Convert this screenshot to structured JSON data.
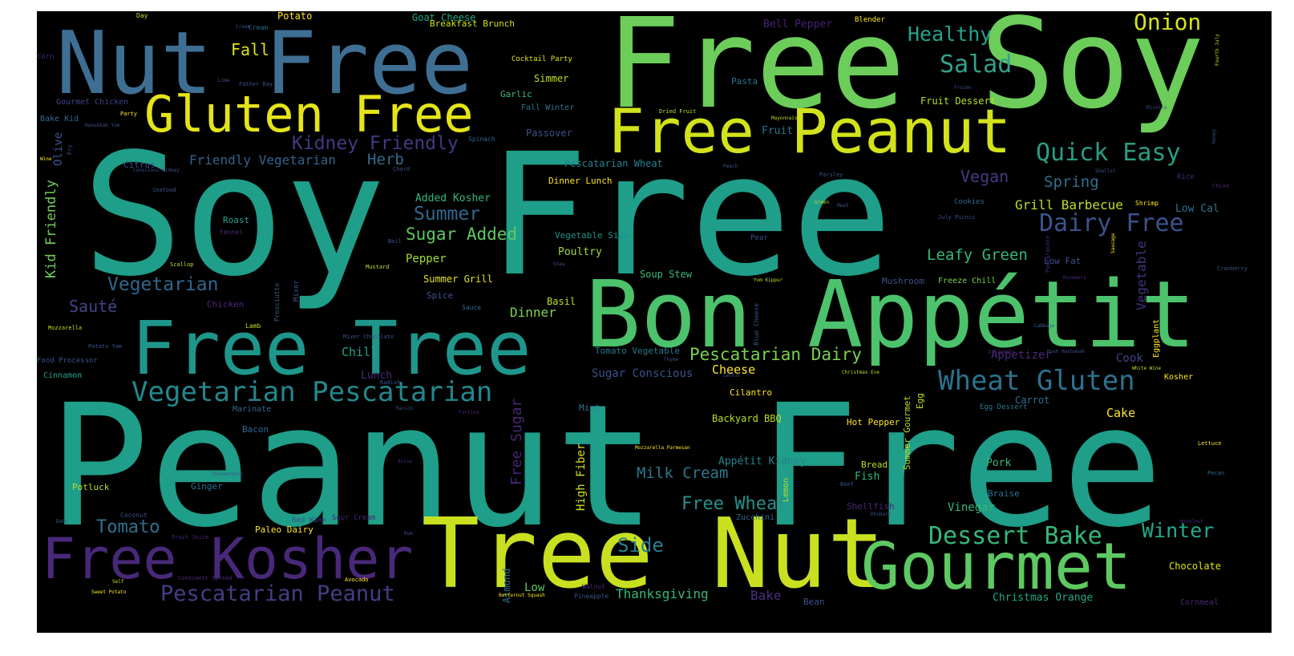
{
  "word_cloud": {
    "words": [
      {
        "text": "Peanut Free",
        "color": "#1f9e89"
      },
      {
        "text": "Soy Free",
        "color": "#1f9e89"
      },
      {
        "text": "Free Soy",
        "color": "#6ccd5a"
      },
      {
        "text": "Tree Nut",
        "color": "#c8e020"
      },
      {
        "text": "Nut Free",
        "color": "#3e6f93"
      },
      {
        "text": "Bon Appétit",
        "color": "#4cc26c"
      },
      {
        "text": "Free Tree",
        "color": "#1f968b"
      },
      {
        "text": "Free Kosher",
        "color": "#482878"
      },
      {
        "text": "Gourmet",
        "color": "#5ec962"
      },
      {
        "text": "Free Peanut",
        "color": "#d2e21b"
      },
      {
        "text": "Gluten Free",
        "color": "#e5e419"
      },
      {
        "text": "Vegetarian Pescatarian",
        "color": "#24878e"
      },
      {
        "text": "Wheat Gluten",
        "color": "#2c728e"
      },
      {
        "text": "Dessert Bake",
        "color": "#35b779"
      },
      {
        "text": "Pescatarian Peanut",
        "color": "#433e85"
      },
      {
        "text": "Quick Easy",
        "color": "#2a9d82"
      },
      {
        "text": "Dairy Free",
        "color": "#3b528b"
      },
      {
        "text": "Kidney Friendly",
        "color": "#453781"
      },
      {
        "text": "Salad",
        "color": "#33a08c"
      },
      {
        "text": "Onion",
        "color": "#d8e219"
      },
      {
        "text": "Healthy",
        "color": "#26a18b"
      },
      {
        "text": "Winter",
        "color": "#26a98b"
      },
      {
        "text": "Pescatarian Dairy",
        "color": "#7ad151"
      },
      {
        "text": "Side",
        "color": "#277f8e"
      },
      {
        "text": "Free Wheat",
        "color": "#26918c"
      },
      {
        "text": "Summer",
        "color": "#31688e"
      },
      {
        "text": "Vegetarian",
        "color": "#31668e"
      },
      {
        "text": "Sugar Added",
        "color": "#5ec962"
      },
      {
        "text": "Tomato",
        "color": "#2c728e"
      },
      {
        "text": "Kid Friendly",
        "color": "#6ece58"
      },
      {
        "text": "Leafy Green",
        "color": "#35b779"
      },
      {
        "text": "Free Sugar",
        "color": "#482475"
      },
      {
        "text": "Milk Cream",
        "color": "#2a788e"
      },
      {
        "text": "Vegan",
        "color": "#443983"
      },
      {
        "text": "Spring",
        "color": "#2d708e"
      },
      {
        "text": "Sauté",
        "color": "#414487"
      },
      {
        "text": "Herb",
        "color": "#2f6c8e"
      },
      {
        "text": "Vegetable",
        "color": "#46327e"
      },
      {
        "text": "Grill Barbecue",
        "color": "#bddf26"
      },
      {
        "text": "Fall",
        "color": "#dde318"
      },
      {
        "text": "Friendly Vegetarian",
        "color": "#32648e"
      },
      {
        "text": "Thanksgiving",
        "color": "#38b977"
      },
      {
        "text": "Sugar Conscious",
        "color": "#3b528b"
      },
      {
        "text": "Potato",
        "color": "#fde725"
      },
      {
        "text": "Dinner",
        "color": "#7fd34e"
      },
      {
        "text": "Pepper",
        "color": "#a5db36"
      },
      {
        "text": "Bake",
        "color": "#46327e"
      },
      {
        "text": "Cake",
        "color": "#fde725"
      },
      {
        "text": "Chill",
        "color": "#20a486"
      },
      {
        "text": "Low Cal",
        "color": "#2c728e"
      },
      {
        "text": "Paleo Dairy",
        "color": "#fde725"
      },
      {
        "text": "Cheese",
        "color": "#fde725"
      },
      {
        "text": "Chocolate",
        "color": "#dde318"
      },
      {
        "text": "Vinegar",
        "color": "#35b779"
      },
      {
        "text": "Appetizer",
        "color": "#482878"
      },
      {
        "text": "Cook",
        "color": "#404688"
      },
      {
        "text": "Christmas Orange",
        "color": "#22a884"
      },
      {
        "text": "Added Kosher",
        "color": "#35b779"
      },
      {
        "text": "High Fiber",
        "color": "#d2e21b"
      },
      {
        "text": "Appétit Kidney",
        "color": "#25858e"
      },
      {
        "text": "Bell Pepper",
        "color": "#482173"
      },
      {
        "text": "Low",
        "color": "#5ec962"
      },
      {
        "text": "Lunch",
        "color": "#482878"
      },
      {
        "text": "Poultry",
        "color": "#a0da39"
      },
      {
        "text": "Pork",
        "color": "#35b779"
      },
      {
        "text": "Soup Stew",
        "color": "#38b977"
      },
      {
        "text": "Backyard BBQ",
        "color": "#b8de29"
      },
      {
        "text": "Summer Grill",
        "color": "#e2e418"
      },
      {
        "text": "Goat Cheese",
        "color": "#22a884"
      },
      {
        "text": "Breakfast Brunch",
        "color": "#d2e21b"
      },
      {
        "text": "Fruit Dessert",
        "color": "#b5de2b"
      },
      {
        "text": "Basil",
        "color": "#bddf26"
      },
      {
        "text": "Roast",
        "color": "#26a18b"
      },
      {
        "text": "Passover",
        "color": "#3b528b"
      },
      {
        "text": "Simmer",
        "color": "#bddf26"
      },
      {
        "text": "Garlic",
        "color": "#3dbc74"
      },
      {
        "text": "Fall Winter",
        "color": "#2c728e"
      },
      {
        "text": "Pasta",
        "color": "#2a788e"
      },
      {
        "text": "Fruit",
        "color": "#2a788e"
      },
      {
        "text": "Olive",
        "color": "#3b528b"
      },
      {
        "text": "Vegetable Side",
        "color": "#21918c"
      },
      {
        "text": "Fish",
        "color": "#35b779"
      },
      {
        "text": "Bread",
        "color": "#bddf26"
      },
      {
        "text": "Braise",
        "color": "#2c728e"
      },
      {
        "text": "Shellfish",
        "color": "#482878"
      },
      {
        "text": "Mushroom",
        "color": "#3b528b"
      },
      {
        "text": "Freeze Chill",
        "color": "#7ad151"
      },
      {
        "text": "Low Fat",
        "color": "#3b528b"
      },
      {
        "text": "Hot Pepper",
        "color": "#fde725"
      },
      {
        "text": "Ginger",
        "color": "#2c728e"
      },
      {
        "text": "Potluck",
        "color": "#b8de29"
      },
      {
        "text": "Egg Dessert",
        "color": "#2a788e"
      },
      {
        "text": "Carrot",
        "color": "#2c728e"
      },
      {
        "text": "Almond",
        "color": "#2c728e"
      },
      {
        "text": "Zucchini",
        "color": "#31688e"
      },
      {
        "text": "Mint",
        "color": "#2a788e"
      },
      {
        "text": "Spice",
        "color": "#3b528b"
      },
      {
        "text": "Summer Gourmet",
        "color": "#b8de29"
      },
      {
        "text": "Egg",
        "color": "#b8de29"
      },
      {
        "text": "Lemon",
        "color": "#b8de29"
      },
      {
        "text": "Bacon",
        "color": "#31688e"
      },
      {
        "text": "Chicken",
        "color": "#482878"
      },
      {
        "text": "Cilantro",
        "color": "#fde725"
      },
      {
        "text": "Dinner Lunch",
        "color": "#fde725"
      },
      {
        "text": "Pescatarian Wheat",
        "color": "#26828e"
      },
      {
        "text": "Tomato Vegetable",
        "color": "#2a788e"
      },
      {
        "text": "Cinnamon",
        "color": "#26a18b"
      },
      {
        "text": "Citrus",
        "color": "#3b528b"
      },
      {
        "text": "Red Wine",
        "color": "#3b528b"
      },
      {
        "text": "Sour Cream",
        "color": "#482878"
      },
      {
        "text": "Marinate",
        "color": "#31688e"
      },
      {
        "text": "Gourmet Chicken",
        "color": "#414487"
      },
      {
        "text": "Bake Kid",
        "color": "#31688e"
      },
      {
        "text": "Cocktail Party",
        "color": "#e2e418"
      },
      {
        "text": "Eggplant",
        "color": "#fde725"
      },
      {
        "text": "Kosher",
        "color": "#fde725"
      },
      {
        "text": "Bean",
        "color": "#3b528b"
      },
      {
        "text": "Cornmeal",
        "color": "#482878"
      },
      {
        "text": "Cookies",
        "color": "#31688e"
      },
      {
        "text": "Rice",
        "color": "#482878"
      },
      {
        "text": "Food Processor",
        "color": "#3b528b"
      },
      {
        "text": "Mixer",
        "color": "#3b528b"
      },
      {
        "text": "Lamb",
        "color": "#bddf26"
      },
      {
        "text": "Blue Cheese",
        "color": "#3b528b"
      },
      {
        "text": "Pear",
        "color": "#3b528b"
      },
      {
        "text": "Shrimp",
        "color": "#fde725"
      },
      {
        "text": "Pineapple",
        "color": "#3b528b"
      },
      {
        "text": "Walnut",
        "color": "#482878"
      },
      {
        "text": "Coconut",
        "color": "#3b528b"
      },
      {
        "text": "Sauce",
        "color": "#31688e"
      },
      {
        "text": "Corn",
        "color": "#482878"
      },
      {
        "text": "Day",
        "color": "#bddf26"
      },
      {
        "text": "Cream",
        "color": "#31688e"
      },
      {
        "text": "Blender",
        "color": "#fde725"
      },
      {
        "text": "Parsley",
        "color": "#3b528b"
      },
      {
        "text": "Dried Fruit",
        "color": "#bddf26"
      },
      {
        "text": "Party",
        "color": "#fde725"
      },
      {
        "text": "Fennel",
        "color": "#482878"
      },
      {
        "text": "Seafood",
        "color": "#3b528b"
      },
      {
        "text": "Scallop",
        "color": "#bddf26"
      },
      {
        "text": "Mustard",
        "color": "#bddf26"
      },
      {
        "text": "Boil",
        "color": "#3b528b"
      },
      {
        "text": "Stew",
        "color": "#3b528b"
      },
      {
        "text": "Chard",
        "color": "#3b528b"
      },
      {
        "text": "Spinach",
        "color": "#31688e"
      },
      {
        "text": "Prosciutto",
        "color": "#31688e"
      },
      {
        "text": "Mozzarella",
        "color": "#bddf26"
      },
      {
        "text": "Potato Yam",
        "color": "#3b528b"
      },
      {
        "text": "Mixer Chocolate",
        "color": "#3b528b"
      },
      {
        "text": "Radish",
        "color": "#3b528b"
      },
      {
        "text": "Raisin",
        "color": "#3b528b"
      },
      {
        "text": "Fontina",
        "color": "#482878"
      },
      {
        "text": "Mozzarella Parmesan",
        "color": "#fde725"
      },
      {
        "text": "Anise",
        "color": "#482878"
      },
      {
        "text": "Cholesterol",
        "color": "#3b528b"
      },
      {
        "text": "Date",
        "color": "#31688e"
      },
      {
        "text": "Fruit Juice",
        "color": "#482878"
      },
      {
        "text": "Condiment Spread",
        "color": "#482878"
      },
      {
        "text": "Avocado",
        "color": "#fde725"
      },
      {
        "text": "Rum",
        "color": "#3b528b"
      },
      {
        "text": "Sweet Potato",
        "color": "#fde725"
      },
      {
        "text": "Self",
        "color": "#bddf26"
      },
      {
        "text": "Butternut Squash",
        "color": "#fde725"
      },
      {
        "text": "Apple",
        "color": "#bddf26"
      },
      {
        "text": "Lettuce",
        "color": "#fde725"
      },
      {
        "text": "Pecan",
        "color": "#31688e"
      },
      {
        "text": "Hazelnut",
        "color": "#482878"
      },
      {
        "text": "Rhubarb",
        "color": "#3b528b"
      },
      {
        "text": "Beef",
        "color": "#3b528b"
      },
      {
        "text": "Christmas Eve",
        "color": "#bddf26"
      },
      {
        "text": "White Wine",
        "color": "#bddf26"
      },
      {
        "text": "Rosh Hashanah",
        "color": "#3b528b"
      },
      {
        "text": "Cabbage",
        "color": "#31688e"
      },
      {
        "text": "Jalapeño",
        "color": "#482878"
      },
      {
        "text": "Yom Kippur",
        "color": "#bddf26"
      },
      {
        "text": "Pomegranate",
        "color": "#482878"
      },
      {
        "text": "Rosemary",
        "color": "#482878"
      },
      {
        "text": "Cranberry",
        "color": "#3b528b"
      },
      {
        "text": "Sausage",
        "color": "#fde725"
      },
      {
        "text": "Shallot",
        "color": "#3b528b"
      },
      {
        "text": "July Picnic",
        "color": "#3b528b"
      },
      {
        "text": "Green",
        "color": "#bddf26"
      },
      {
        "text": "Meat",
        "color": "#3b528b"
      },
      {
        "text": "Peach",
        "color": "#3b528b"
      },
      {
        "text": "Chive",
        "color": "#482878"
      },
      {
        "text": "Frozen",
        "color": "#3b528b"
      },
      {
        "text": "Ricotta",
        "color": "#3b528b"
      },
      {
        "text": "Honey",
        "color": "#3b528b"
      },
      {
        "text": "Fourth July",
        "color": "#bddf26"
      },
      {
        "text": "Mayonnaise",
        "color": "#bddf26"
      },
      {
        "text": "Thyme",
        "color": "#3b528b"
      },
      {
        "text": "Lentil",
        "color": "#3b528b"
      },
      {
        "text": "Lime",
        "color": "#3b528b"
      },
      {
        "text": "Father Day",
        "color": "#3b528b"
      },
      {
        "text": "Hanukkah Yom",
        "color": "#3b528b"
      },
      {
        "text": "Fry",
        "color": "#3b528b"
      },
      {
        "text": "Wine",
        "color": "#fde725"
      },
      {
        "text": "Conscious Kidney",
        "color": "#3b528b"
      },
      {
        "text": "Cream",
        "color": "#3b528b"
      }
    ]
  }
}
